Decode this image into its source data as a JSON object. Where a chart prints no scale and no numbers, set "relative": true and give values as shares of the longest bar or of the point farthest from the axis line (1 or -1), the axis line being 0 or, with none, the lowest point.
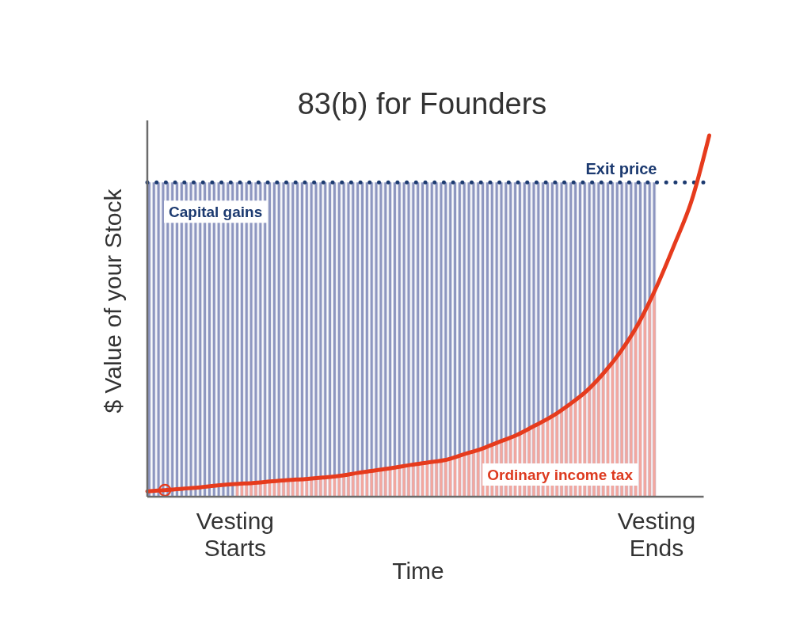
{
  "chart_data": {
    "type": "line",
    "title": "83(b) for Founders",
    "xlabel": "Time",
    "ylabel": "$ Value of your Stock",
    "relative": true,
    "categories": [
      null,
      null,
      null,
      null,
      null,
      "Vesting Starts",
      null,
      null,
      null,
      null,
      null,
      null,
      null,
      null,
      null,
      null,
      null,
      null,
      null,
      null,
      null,
      null,
      null,
      null,
      null,
      null,
      null,
      null,
      null,
      "Vesting Ends",
      null,
      null,
      null
    ],
    "series": [
      {
        "name": "Capital gains",
        "type": "area",
        "color": "#8d96c0",
        "values": [
          0.87,
          0.87,
          0.87,
          0.87,
          0.87,
          0.87,
          0.87,
          0.87,
          0.87,
          0.87,
          0.87,
          0.87,
          0.87,
          0.87,
          0.87,
          0.87,
          0.87,
          0.87,
          0.87,
          0.87,
          0.87,
          0.87,
          0.87,
          0.87,
          0.87,
          0.87,
          0.87,
          0.87,
          0.87,
          0.87,
          null,
          null,
          null
        ]
      },
      {
        "name": "Ordinary income tax",
        "type": "area",
        "color": "#f4a79e",
        "values": [
          null,
          null,
          null,
          null,
          null,
          0.035,
          0.038,
          0.042,
          0.046,
          0.049,
          0.053,
          0.058,
          0.066,
          0.073,
          0.08,
          0.088,
          0.095,
          0.102,
          0.117,
          0.132,
          0.151,
          0.17,
          0.195,
          0.221,
          0.254,
          0.292,
          0.343,
          0.405,
          0.482,
          0.581,
          null,
          null,
          null
        ]
      },
      {
        "color": "#e63b1d",
        "values": [
          0.015,
          0.018,
          0.022,
          0.026,
          0.031,
          0.035,
          0.038,
          0.042,
          0.046,
          0.049,
          0.053,
          0.058,
          0.066,
          0.073,
          0.08,
          0.088,
          0.095,
          0.102,
          0.117,
          0.132,
          0.151,
          0.17,
          0.195,
          0.221,
          0.254,
          0.292,
          0.343,
          0.405,
          0.482,
          0.581,
          0.696,
          0.82,
          1
        ]
      },
      {
        "type": "scatter",
        "color": "#e63b1d",
        "marker": "circle",
        "values": [
          null,
          0.018,
          null,
          null,
          null,
          null,
          null,
          null,
          null,
          null,
          null,
          null,
          null,
          null,
          null,
          null,
          null,
          null,
          null,
          null,
          null,
          null,
          null,
          null,
          null,
          null,
          null,
          null,
          null,
          null,
          null,
          null,
          null
        ]
      }
    ],
    "ref_lines": [
      {
        "axis": "y",
        "value": 0.87,
        "label": "Exit price",
        "color": "#1c3a70",
        "line_style": "dotted"
      }
    ]
  }
}
